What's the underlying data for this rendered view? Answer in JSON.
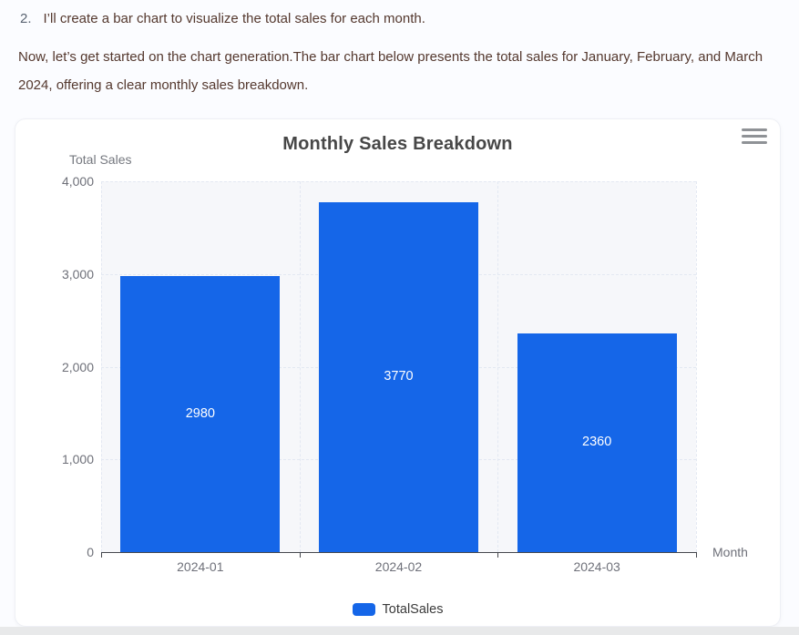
{
  "intro": {
    "list_number": "2.",
    "list_text": "I’ll create a bar chart to visualize the total sales for each month.",
    "paragraph": "Now, let’s get started on the chart generation.The bar chart below presents the total sales for January, February, and March 2024, offering a clear monthly sales breakdown."
  },
  "chart_data": {
    "type": "bar",
    "title": "Monthly Sales Breakdown",
    "categories": [
      "2024-01",
      "2024-02",
      "2024-03"
    ],
    "series": [
      {
        "name": "TotalSales",
        "values": [
          2980,
          3770,
          2360
        ]
      }
    ],
    "bar_labels": [
      "2980",
      "3770",
      "2360"
    ],
    "xlabel": "Month",
    "ylabel": "Total Sales",
    "ylim": [
      0,
      4000
    ],
    "yticks": [
      0,
      1000,
      2000,
      3000,
      4000
    ],
    "ytick_labels": [
      "0",
      "1,000",
      "2,000",
      "3,000",
      "4,000"
    ],
    "legend_position": "bottom",
    "grid": true,
    "bar_color": "#1566e8",
    "bar_label_color": "#ffffff",
    "toolbox_icon": "hamburger-menu-icon"
  }
}
